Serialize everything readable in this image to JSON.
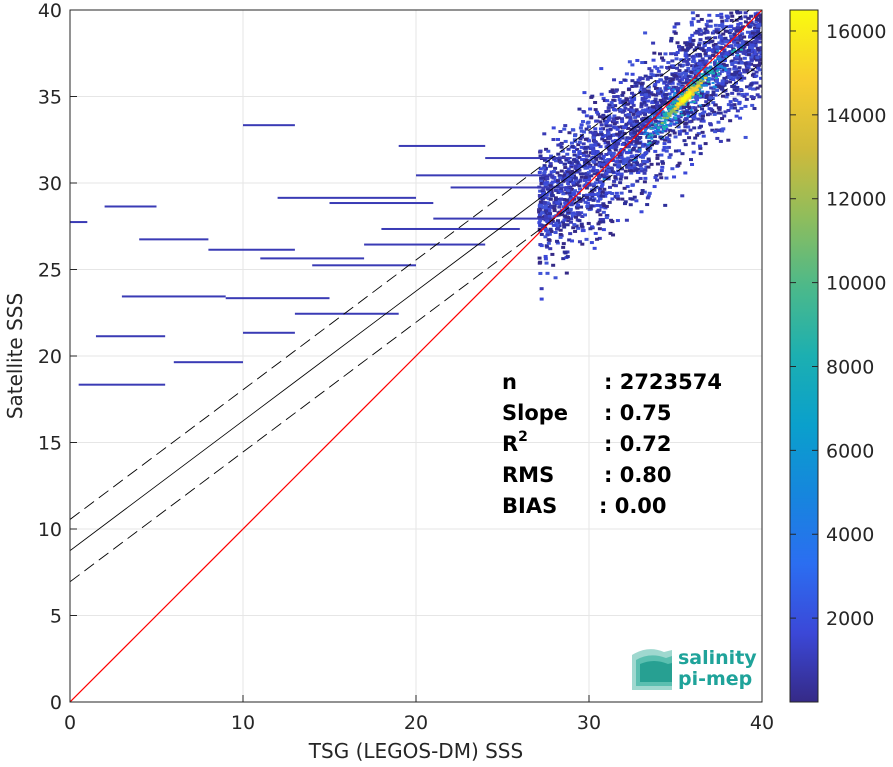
{
  "colors": {
    "one_to_one": "#ff0000",
    "fit": "#000000",
    "logo": "#1fa39a"
  },
  "chart_data": {
    "type": "heatmap",
    "xlabel": "TSG (LEGOS-DM) SSS",
    "ylabel": "Satellite SSS",
    "xlim": [
      0,
      40
    ],
    "ylim": [
      0,
      40
    ],
    "xticks": [
      "0",
      "10",
      "20",
      "30",
      "40"
    ],
    "yticks": [
      "0",
      "5",
      "10",
      "15",
      "20",
      "25",
      "30",
      "35",
      "40"
    ],
    "grid": true,
    "colorbar": {
      "colormap": "parula",
      "range": [
        0,
        16500
      ],
      "ticks": [
        "2000",
        "4000",
        "6000",
        "8000",
        "10000",
        "12000",
        "14000",
        "16000"
      ],
      "tick_values": [
        2000,
        4000,
        6000,
        8000,
        10000,
        12000,
        14000,
        16000
      ]
    },
    "density_peak": {
      "x": 35.5,
      "y": 35.0,
      "count": 16500
    },
    "one_to_one_line": {
      "x": [
        0,
        40
      ],
      "y": [
        0,
        40
      ]
    },
    "fit_line": {
      "intercept": 8.75,
      "slope": 0.75,
      "band_offset": 1.8
    },
    "stats": [
      {
        "label": "n",
        "sup": "",
        "value": ": 2723574"
      },
      {
        "label": "Slope",
        "sup": "",
        "value": ": 0.75"
      },
      {
        "label": "R",
        "sup": "2",
        "value": ": 0.72"
      },
      {
        "label": "RMS",
        "sup": "",
        "value": ": 0.80"
      },
      {
        "label": "BIAS",
        "sup": "",
        "value": ": 0.00"
      }
    ]
  },
  "logo": {
    "line1": "salinity",
    "line2": "pi-mep"
  }
}
